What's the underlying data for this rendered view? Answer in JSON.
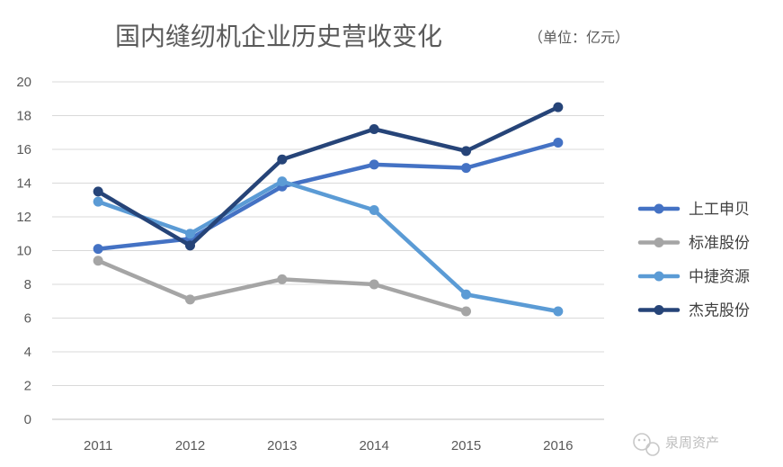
{
  "chart_data": {
    "type": "line",
    "title": "国内缝纫机企业历史营收变化",
    "subtitle": "（单位：亿元）",
    "xlabel": "",
    "ylabel": "",
    "categories": [
      "2011",
      "2012",
      "2013",
      "2014",
      "2015",
      "2016"
    ],
    "ylim": [
      0,
      20
    ],
    "yticks": [
      0,
      2,
      4,
      6,
      8,
      10,
      12,
      14,
      16,
      18,
      20
    ],
    "grid": true,
    "legend_position": "right",
    "series": [
      {
        "name": "上工申贝",
        "color": "#4472c4",
        "values": [
          10.1,
          10.7,
          13.8,
          15.1,
          14.9,
          16.4
        ]
      },
      {
        "name": "标准股份",
        "color": "#a5a5a5",
        "values": [
          9.4,
          7.1,
          8.3,
          8.0,
          6.4,
          null
        ]
      },
      {
        "name": "中捷资源",
        "color": "#5b9bd5",
        "values": [
          12.9,
          11.0,
          14.1,
          12.4,
          7.4,
          6.4
        ]
      },
      {
        "name": "杰克股份",
        "color": "#264478",
        "values": [
          13.5,
          10.3,
          15.4,
          17.2,
          15.9,
          18.5
        ]
      }
    ]
  },
  "watermark": {
    "text": "泉周资产"
  }
}
